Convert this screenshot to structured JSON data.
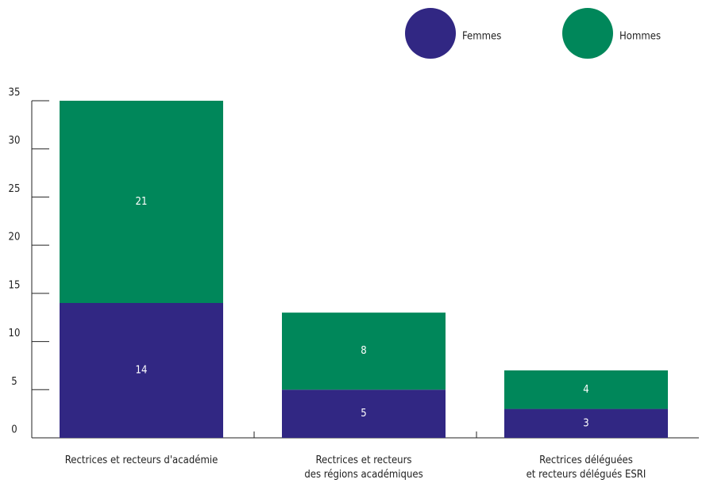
{
  "chart_data": {
    "type": "stacked_bar",
    "categories": [
      "Rectrices et recteurs d'académie",
      "Rectrices et recteurs\ndes régions académiques",
      "Rectrices déléguées\net recteurs délégués ESRI"
    ],
    "series": [
      {
        "name": "Femmes",
        "color": "#312783",
        "values": [
          14,
          5,
          3
        ]
      },
      {
        "name": "Hommes",
        "color": "#00875a",
        "values": [
          21,
          8,
          4
        ]
      }
    ],
    "ylim": [
      0,
      35
    ],
    "yticks": [
      0,
      5,
      10,
      15,
      20,
      25,
      30,
      35
    ]
  }
}
